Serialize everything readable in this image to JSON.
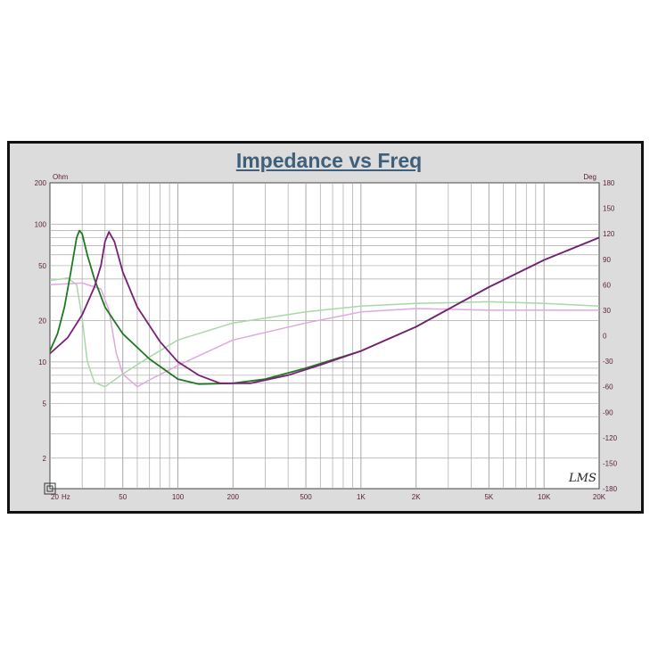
{
  "colors": {
    "panel": "#dcdcdc",
    "plot_bg": "#ffffff",
    "grid": "#a8a8a8",
    "title": "#3f5f7a",
    "tick_label": "#5a1e3a",
    "impedance_1": "#1f7a1f",
    "impedance_2": "#7a1f78",
    "phase_1": "#a8d8a8",
    "phase_2": "#e0a8e0"
  },
  "chart_data": {
    "type": "line",
    "title": "Impedance vs Freq",
    "x_unit": "Hz",
    "y_left_unit": "Ohm",
    "y_right_unit": "Deg",
    "x_scale": "log",
    "y_left_scale": "log",
    "xlim": [
      20,
      20000
    ],
    "ylim_left": [
      1.2,
      200
    ],
    "ylim_right": [
      -180,
      180
    ],
    "grid": true,
    "x_tick_labels": [
      {
        "value": 20,
        "label": "20"
      },
      {
        "value": 50,
        "label": "50"
      },
      {
        "value": 100,
        "label": "100"
      },
      {
        "value": 200,
        "label": "200"
      },
      {
        "value": 500,
        "label": "500"
      },
      {
        "value": 1000,
        "label": "1K"
      },
      {
        "value": 2000,
        "label": "2K"
      },
      {
        "value": 5000,
        "label": "5K"
      },
      {
        "value": 10000,
        "label": "10K"
      },
      {
        "value": 20000,
        "label": "20K"
      }
    ],
    "y_left_tick_labels": [
      {
        "value": 200,
        "label": "200"
      },
      {
        "value": 100,
        "label": "100"
      },
      {
        "value": 50,
        "label": "50"
      },
      {
        "value": 20,
        "label": "20"
      },
      {
        "value": 10,
        "label": "10"
      },
      {
        "value": 5,
        "label": "5"
      },
      {
        "value": 2,
        "label": "2"
      }
    ],
    "y_right_tick_labels": [
      {
        "value": 180,
        "label": "180"
      },
      {
        "value": 150,
        "label": "150"
      },
      {
        "value": 120,
        "label": "120"
      },
      {
        "value": 90,
        "label": "90"
      },
      {
        "value": 60,
        "label": "60"
      },
      {
        "value": 30,
        "label": "30"
      },
      {
        "value": 0,
        "label": "0"
      },
      {
        "value": -30,
        "label": "-30"
      },
      {
        "value": -60,
        "label": "-60"
      },
      {
        "value": -90,
        "label": "-90"
      },
      {
        "value": -120,
        "label": "-120"
      },
      {
        "value": -150,
        "label": "-150"
      },
      {
        "value": -180,
        "label": "-180"
      }
    ],
    "watermark": "LMS",
    "series": [
      {
        "axis": "left",
        "color": "#1f7a1f",
        "points": [
          [
            20,
            12
          ],
          [
            22,
            16
          ],
          [
            24,
            25
          ],
          [
            26,
            45
          ],
          [
            28,
            80
          ],
          [
            29,
            90
          ],
          [
            30,
            85
          ],
          [
            32,
            60
          ],
          [
            35,
            40
          ],
          [
            40,
            25
          ],
          [
            50,
            16
          ],
          [
            70,
            10.5
          ],
          [
            100,
            7.5
          ],
          [
            130,
            6.9
          ],
          [
            200,
            7
          ],
          [
            300,
            7.5
          ],
          [
            500,
            9
          ],
          [
            1000,
            12
          ],
          [
            2000,
            18
          ],
          [
            5000,
            35
          ],
          [
            10000,
            55
          ],
          [
            20000,
            80
          ]
        ]
      },
      {
        "axis": "left",
        "color": "#7a1f78",
        "points": [
          [
            20,
            11.5
          ],
          [
            25,
            15
          ],
          [
            30,
            22
          ],
          [
            35,
            35
          ],
          [
            38,
            50
          ],
          [
            40,
            75
          ],
          [
            42,
            88
          ],
          [
            45,
            75
          ],
          [
            50,
            45
          ],
          [
            60,
            25
          ],
          [
            80,
            14
          ],
          [
            100,
            10
          ],
          [
            130,
            8
          ],
          [
            170,
            7
          ],
          [
            250,
            7
          ],
          [
            400,
            8
          ],
          [
            600,
            9.5
          ],
          [
            1000,
            12
          ],
          [
            2000,
            18
          ],
          [
            5000,
            35
          ],
          [
            10000,
            55
          ],
          [
            20000,
            80
          ]
        ]
      },
      {
        "axis": "right",
        "color": "#a8d8a8",
        "points": [
          [
            20,
            65
          ],
          [
            25,
            68
          ],
          [
            28,
            60
          ],
          [
            30,
            20
          ],
          [
            32,
            -30
          ],
          [
            35,
            -55
          ],
          [
            40,
            -60
          ],
          [
            50,
            -45
          ],
          [
            70,
            -25
          ],
          [
            100,
            -5
          ],
          [
            200,
            15
          ],
          [
            500,
            28
          ],
          [
            1000,
            35
          ],
          [
            2000,
            38
          ],
          [
            5000,
            40
          ],
          [
            10000,
            38
          ],
          [
            20000,
            35
          ]
        ]
      },
      {
        "axis": "right",
        "color": "#e0a8e0",
        "points": [
          [
            20,
            60
          ],
          [
            30,
            62
          ],
          [
            38,
            55
          ],
          [
            42,
            30
          ],
          [
            46,
            -20
          ],
          [
            50,
            -45
          ],
          [
            60,
            -60
          ],
          [
            70,
            -52
          ],
          [
            100,
            -35
          ],
          [
            200,
            -5
          ],
          [
            500,
            15
          ],
          [
            1000,
            28
          ],
          [
            2000,
            32
          ],
          [
            5000,
            30
          ],
          [
            10000,
            30
          ],
          [
            20000,
            30
          ]
        ]
      }
    ]
  }
}
